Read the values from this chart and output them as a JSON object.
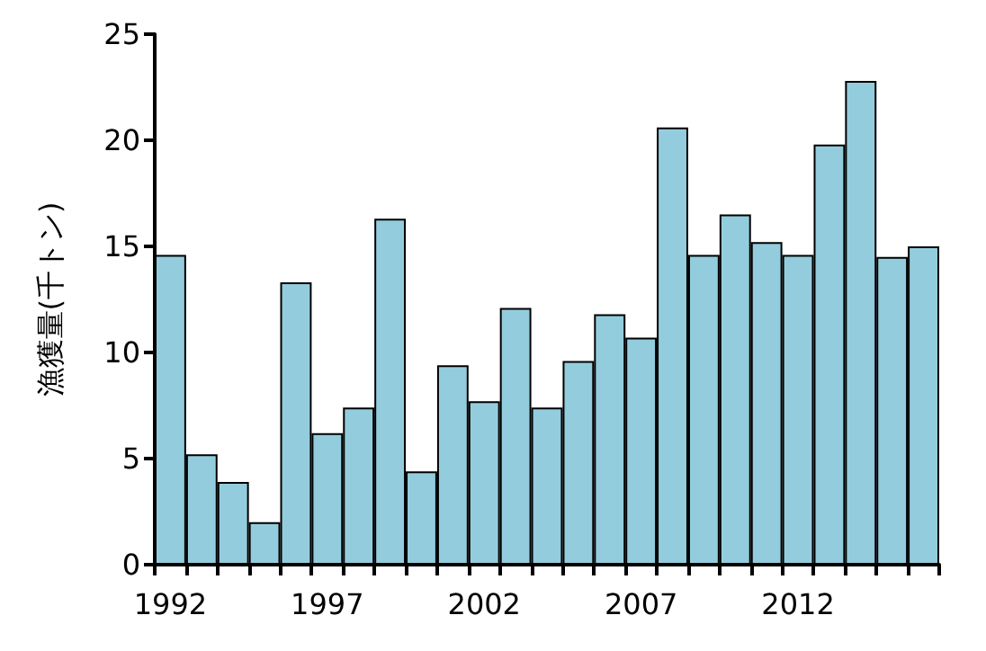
{
  "chart_data": {
    "type": "bar",
    "ylabel": "漁獲量(千トン)",
    "categories": [
      "1992",
      null,
      null,
      null,
      null,
      "1997",
      null,
      null,
      null,
      null,
      "2002",
      null,
      null,
      null,
      null,
      "2007",
      null,
      null,
      null,
      null,
      "2012",
      null,
      null,
      null,
      null
    ],
    "values": [
      14.6,
      5.2,
      3.9,
      2.0,
      13.3,
      6.2,
      7.4,
      16.3,
      4.4,
      9.4,
      7.7,
      12.1,
      7.4,
      9.6,
      11.8,
      10.7,
      20.6,
      14.6,
      16.5,
      15.2,
      14.6,
      19.8,
      22.8,
      14.5,
      15.0
    ],
    "color": "#93cddd",
    "ylim": [
      0,
      25
    ],
    "yticks": [
      0,
      5,
      10,
      15,
      20,
      25
    ],
    "grid": false
  }
}
